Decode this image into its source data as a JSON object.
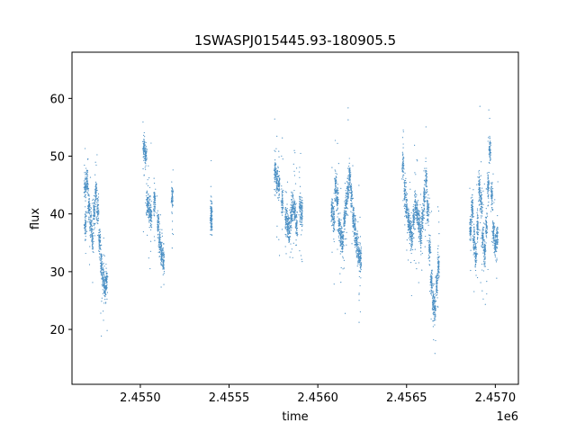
{
  "chart_data": {
    "type": "scatter",
    "title": "1SWASPJ015445.93-180905.5",
    "xlabel": "time",
    "ylabel": "flux",
    "x_offset_label": "1e6",
    "xlim": [
      2454615,
      2457130
    ],
    "ylim": [
      10.5,
      68.0
    ],
    "x_ticks": [
      2455000,
      2455500,
      2456000,
      2456500,
      2457000
    ],
    "x_tick_labels": [
      "2.4550",
      "2.4555",
      "2.4560",
      "2.4565",
      "2.4570"
    ],
    "y_ticks": [
      20,
      30,
      40,
      50,
      60
    ],
    "y_tick_labels": [
      "20",
      "30",
      "40",
      "50",
      "60"
    ],
    "grid": false,
    "point_color": "#4a8fc4",
    "series": [
      {
        "values_note": "",
        "points": [
          [
            2454690,
            38.2
          ],
          [
            2454690,
            44.5
          ],
          [
            2454700,
            45.6
          ],
          [
            2454710,
            41.2
          ],
          [
            2454720,
            38.5
          ],
          [
            2454730,
            36.0
          ],
          [
            2454740,
            40.1
          ],
          [
            2454750,
            43.8
          ],
          [
            2454760,
            41.0
          ],
          [
            2454770,
            35.2
          ],
          [
            2454780,
            31.5
          ],
          [
            2454790,
            28.9
          ],
          [
            2454800,
            27.5
          ],
          [
            2454810,
            28.3
          ],
          [
            2455020,
            51.5
          ],
          [
            2455030,
            50.2
          ],
          [
            2455040,
            41.6
          ],
          [
            2455050,
            40.8
          ],
          [
            2455060,
            39.9
          ],
          [
            2455080,
            42.1
          ],
          [
            2455100,
            38.5
          ],
          [
            2455110,
            35.0
          ],
          [
            2455120,
            33.1
          ],
          [
            2455130,
            31.8
          ],
          [
            2455180,
            43.0
          ],
          [
            2455400,
            40.2
          ],
          [
            2455400,
            38.9
          ],
          [
            2455760,
            47.2
          ],
          [
            2455770,
            45.8
          ],
          [
            2455780,
            45.1
          ],
          [
            2455800,
            42.0
          ],
          [
            2455820,
            39.5
          ],
          [
            2455830,
            38.2
          ],
          [
            2455840,
            37.0
          ],
          [
            2455850,
            39.8
          ],
          [
            2455860,
            41.5
          ],
          [
            2455870,
            40.5
          ],
          [
            2455880,
            38.0
          ],
          [
            2455900,
            41.0
          ],
          [
            2455910,
            40.2
          ],
          [
            2456080,
            40.5
          ],
          [
            2456090,
            39.0
          ],
          [
            2456100,
            44.8
          ],
          [
            2456110,
            42.5
          ],
          [
            2456120,
            38.0
          ],
          [
            2456130,
            36.5
          ],
          [
            2456140,
            35.0
          ],
          [
            2456150,
            39.2
          ],
          [
            2456160,
            41.8
          ],
          [
            2456170,
            44.0
          ],
          [
            2456180,
            46.2
          ],
          [
            2456190,
            43.0
          ],
          [
            2456200,
            39.5
          ],
          [
            2456210,
            37.2
          ],
          [
            2456220,
            35.0
          ],
          [
            2456230,
            33.0
          ],
          [
            2456240,
            32.2
          ],
          [
            2456480,
            48.5
          ],
          [
            2456490,
            44.0
          ],
          [
            2456500,
            41.2
          ],
          [
            2456510,
            39.0
          ],
          [
            2456520,
            37.5
          ],
          [
            2456530,
            36.2
          ],
          [
            2456540,
            38.8
          ],
          [
            2456550,
            41.5
          ],
          [
            2456560,
            40.0
          ],
          [
            2456570,
            38.2
          ],
          [
            2456580,
            36.5
          ],
          [
            2456590,
            39.5
          ],
          [
            2456600,
            42.8
          ],
          [
            2456610,
            46.0
          ],
          [
            2456620,
            41.0
          ],
          [
            2456630,
            34.0
          ],
          [
            2456640,
            28.5
          ],
          [
            2456650,
            25.0
          ],
          [
            2456660,
            23.5
          ],
          [
            2456670,
            27.5
          ],
          [
            2456680,
            31.0
          ],
          [
            2456860,
            37.5
          ],
          [
            2456870,
            41.0
          ],
          [
            2456880,
            35.5
          ],
          [
            2456890,
            33.0
          ],
          [
            2456900,
            38.0
          ],
          [
            2456910,
            44.5
          ],
          [
            2456920,
            42.0
          ],
          [
            2456930,
            36.0
          ],
          [
            2456940,
            33.5
          ],
          [
            2456950,
            38.0
          ],
          [
            2456960,
            45.0
          ],
          [
            2456970,
            51.0
          ],
          [
            2456980,
            43.0
          ],
          [
            2456990,
            37.0
          ],
          [
            2457000,
            34.5
          ],
          [
            2457010,
            36.0
          ]
        ]
      }
    ]
  }
}
